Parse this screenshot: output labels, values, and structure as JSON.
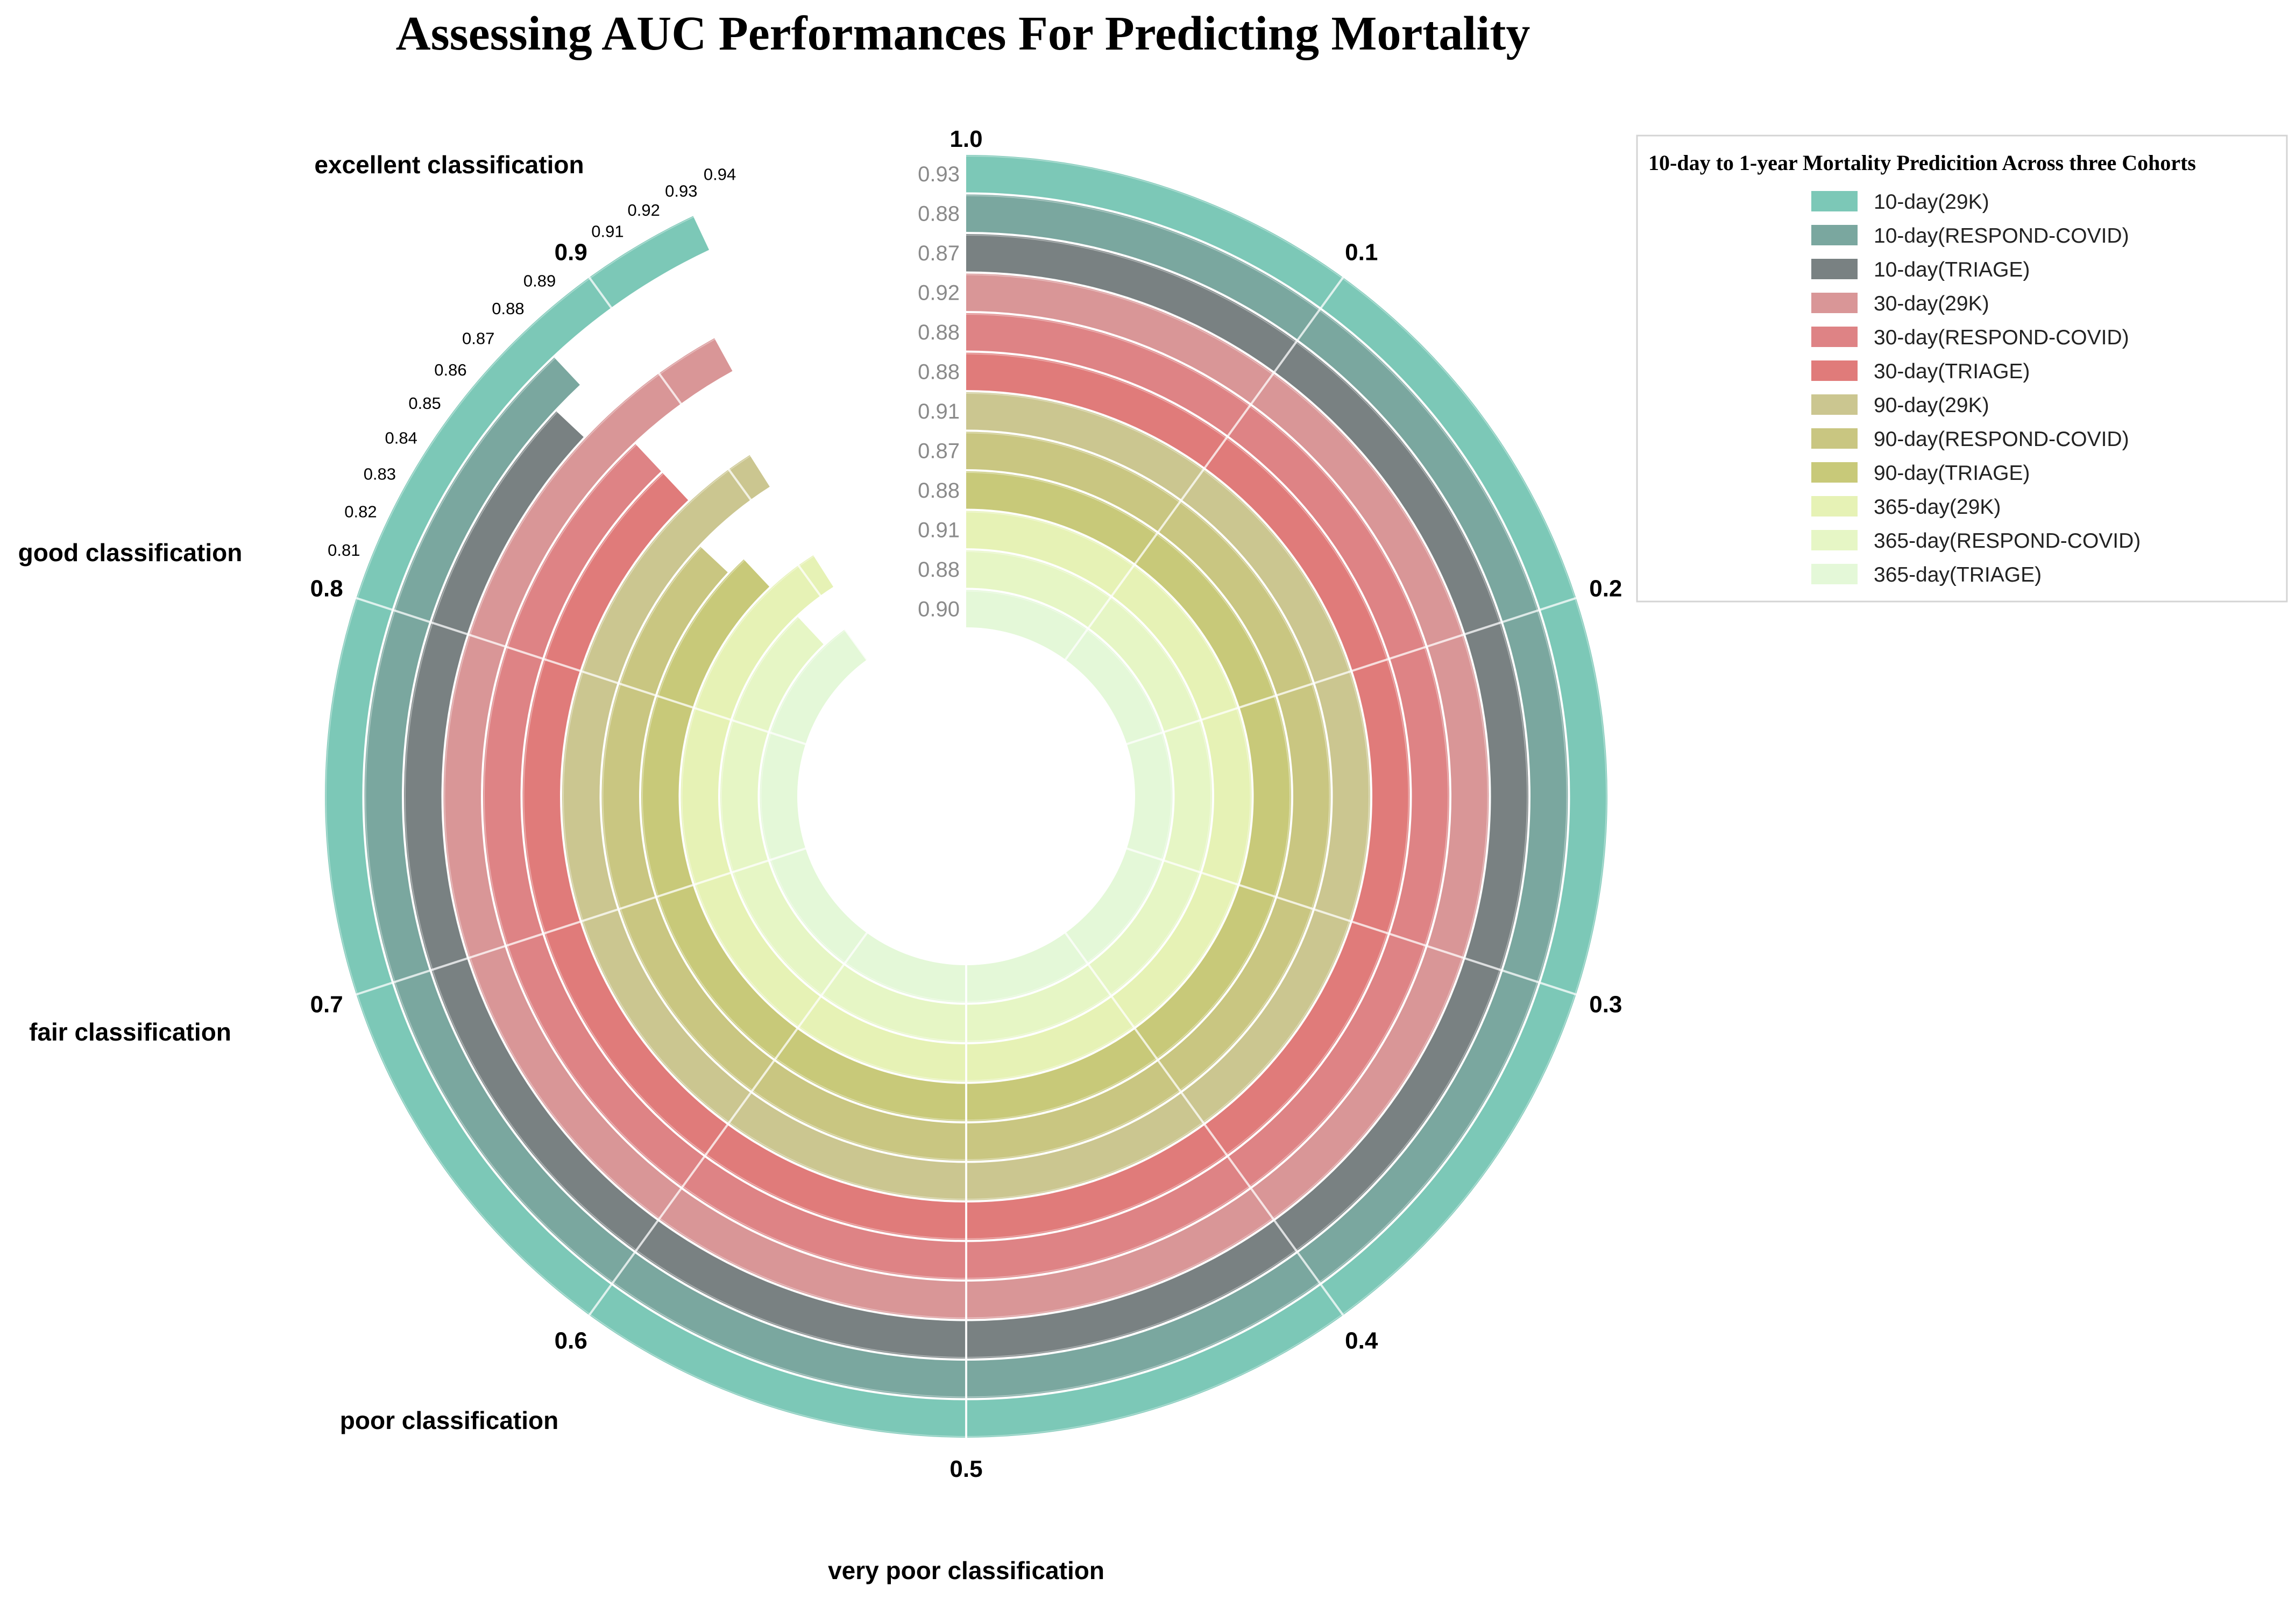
{
  "chart_data": {
    "type": "radial-bar",
    "title": "Assessing AUC Performances For Predicting Mortality",
    "angular_axis": {
      "range": [
        0,
        1
      ],
      "major_ticks": [
        "1.0",
        "0.1",
        "0.2",
        "0.3",
        "0.4",
        "0.5",
        "0.6",
        "0.7",
        "0.8",
        "0.9"
      ],
      "major_tick_values": [
        0,
        0.1,
        0.2,
        0.3,
        0.4,
        0.5,
        0.6,
        0.7,
        0.8,
        0.9
      ],
      "minor_ticks": [
        "0.81",
        "0.82",
        "0.83",
        "0.84",
        "0.85",
        "0.86",
        "0.87",
        "0.88",
        "0.89",
        "0.91",
        "0.92",
        "0.93",
        "0.94"
      ],
      "minor_tick_values": [
        0.81,
        0.82,
        0.83,
        0.84,
        0.85,
        0.86,
        0.87,
        0.88,
        0.89,
        0.91,
        0.92,
        0.93,
        0.94
      ]
    },
    "classification_bands": [
      {
        "label": "excellent classification",
        "position": "upper-left"
      },
      {
        "label": "good classification",
        "position": "left-upper"
      },
      {
        "label": "fair classification",
        "position": "left-lower"
      },
      {
        "label": "poor classification",
        "position": "lower-left"
      },
      {
        "label": "very poor classification",
        "position": "bottom"
      }
    ],
    "legend_title": "10-day to 1-year Mortality Predicition Across three Cohorts",
    "series": [
      {
        "name": "10-day(29K)",
        "value": 0.93,
        "label": "0.93",
        "color": "#7cc8b7"
      },
      {
        "name": "10-day(RESPOND-COVID)",
        "value": 0.88,
        "label": "0.88",
        "color": "#7aa79f"
      },
      {
        "name": "10-day(TRIAGE)",
        "value": 0.87,
        "label": "0.87",
        "color": "#798182"
      },
      {
        "name": "30-day(29K)",
        "value": 0.92,
        "label": "0.92",
        "color": "#d99697"
      },
      {
        "name": "30-day(RESPOND-COVID)",
        "value": 0.88,
        "label": "0.88",
        "color": "#de8385"
      },
      {
        "name": "30-day(TRIAGE)",
        "value": 0.88,
        "label": "0.88",
        "color": "#e07b7a"
      },
      {
        "name": "90-day(29K)",
        "value": 0.91,
        "label": "0.91",
        "color": "#cbc690"
      },
      {
        "name": "90-day(RESPOND-COVID)",
        "value": 0.87,
        "label": "0.87",
        "color": "#c9c681"
      },
      {
        "name": "90-day(TRIAGE)",
        "value": 0.88,
        "label": "0.88",
        "color": "#c8c979"
      },
      {
        "name": "365-day(29K)",
        "value": 0.91,
        "label": "0.91",
        "color": "#e6f2b5"
      },
      {
        "name": "365-day(RESPOND-COVID)",
        "value": 0.88,
        "label": "0.88",
        "color": "#e6f6c5"
      },
      {
        "name": "365-day(TRIAGE)",
        "value": 0.9,
        "label": "0.90",
        "color": "#e4f8d8"
      }
    ]
  }
}
